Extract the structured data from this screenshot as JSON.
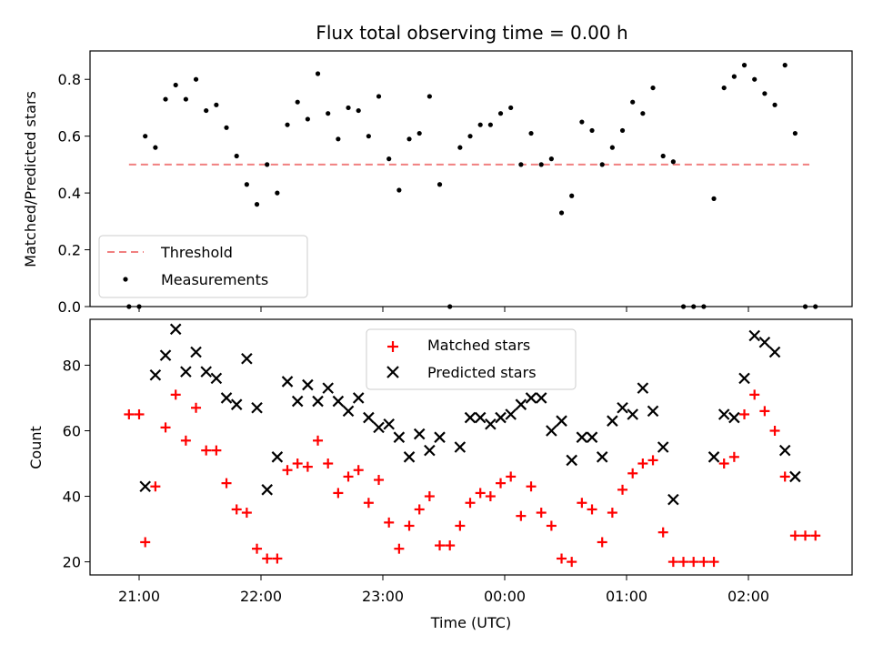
{
  "figure_title": "Flux total observing time = 0.00 h",
  "chart_data": [
    {
      "type": "scatter",
      "ylabel": "Matched/Predicted stars",
      "xlabel": "",
      "ylim": [
        0,
        0.9
      ],
      "yticks": [
        "0.0",
        "0.2",
        "0.4",
        "0.6",
        "0.8"
      ],
      "legend_position": "lower-left",
      "threshold": {
        "name": "Threshold",
        "y": 0.5,
        "x_start": "20:55",
        "x_end": "02:30",
        "color": "#f08080"
      },
      "series": [
        {
          "name": "Measurements",
          "color": "#000000",
          "x": [
            "20:55",
            "21:00",
            "21:03",
            "21:08",
            "21:13",
            "21:18",
            "21:23",
            "21:28",
            "21:33",
            "21:38",
            "21:43",
            "21:48",
            "21:53",
            "21:58",
            "22:03",
            "22:08",
            "22:13",
            "22:18",
            "22:23",
            "22:28",
            "22:33",
            "22:38",
            "22:43",
            "22:48",
            "22:53",
            "22:58",
            "23:03",
            "23:08",
            "23:13",
            "23:18",
            "23:23",
            "23:28",
            "23:33",
            "23:38",
            "23:43",
            "23:48",
            "23:53",
            "23:58",
            "00:03",
            "00:08",
            "00:13",
            "00:18",
            "00:23",
            "00:28",
            "00:33",
            "00:38",
            "00:43",
            "00:48",
            "00:53",
            "00:58",
            "01:03",
            "01:08",
            "01:13",
            "01:18",
            "01:23",
            "01:28",
            "01:33",
            "01:38",
            "01:43",
            "01:48",
            "01:53",
            "01:58",
            "02:03",
            "02:08",
            "02:13",
            "02:18",
            "02:23",
            "02:28",
            "02:33"
          ],
          "y": [
            0.0,
            0.0,
            0.6,
            0.56,
            0.73,
            0.78,
            0.73,
            0.8,
            0.69,
            0.71,
            0.63,
            0.53,
            0.43,
            0.36,
            0.5,
            0.4,
            0.64,
            0.72,
            0.66,
            0.82,
            0.68,
            0.59,
            0.7,
            0.69,
            0.6,
            0.74,
            0.52,
            0.41,
            0.59,
            0.61,
            0.74,
            0.43,
            0.0,
            0.56,
            0.6,
            0.64,
            0.64,
            0.68,
            0.7,
            0.5,
            0.61,
            0.5,
            0.52,
            0.33,
            0.39,
            0.65,
            0.62,
            0.5,
            0.56,
            0.62,
            0.72,
            0.68,
            0.77,
            0.53,
            0.51,
            0.0,
            0.0,
            0.0,
            0.38,
            0.77,
            0.81,
            0.85,
            0.8,
            0.75,
            0.71,
            0.85,
            0.61,
            0.0,
            0.0
          ]
        }
      ]
    },
    {
      "type": "scatter",
      "ylabel": "Count",
      "xlabel": "Time (UTC)",
      "ylim": [
        16,
        94
      ],
      "yticks": [
        "20",
        "40",
        "60",
        "80"
      ],
      "xticks": [
        "21:00",
        "22:00",
        "23:00",
        "00:00",
        "01:00",
        "02:00"
      ],
      "legend_position": "top-center",
      "series": [
        {
          "name": "Matched stars",
          "color": "#ff0000",
          "marker": "plus",
          "x": [
            "20:55",
            "21:00",
            "21:03",
            "21:08",
            "21:13",
            "21:18",
            "21:23",
            "21:28",
            "21:33",
            "21:38",
            "21:43",
            "21:48",
            "21:53",
            "21:58",
            "22:03",
            "22:08",
            "22:13",
            "22:18",
            "22:23",
            "22:28",
            "22:33",
            "22:38",
            "22:43",
            "22:48",
            "22:53",
            "22:58",
            "23:03",
            "23:08",
            "23:13",
            "23:18",
            "23:23",
            "23:28",
            "23:33",
            "23:38",
            "23:43",
            "23:48",
            "23:53",
            "23:58",
            "00:03",
            "00:08",
            "00:13",
            "00:18",
            "00:23",
            "00:28",
            "00:33",
            "00:38",
            "00:43",
            "00:48",
            "00:53",
            "00:58",
            "01:03",
            "01:08",
            "01:13",
            "01:18",
            "01:23",
            "01:28",
            "01:33",
            "01:38",
            "01:43",
            "01:48",
            "01:53",
            "01:58",
            "02:03",
            "02:08",
            "02:13",
            "02:18",
            "02:23",
            "02:28",
            "02:33"
          ],
          "y": [
            65,
            65,
            26,
            43,
            61,
            71,
            57,
            67,
            54,
            54,
            44,
            36,
            35,
            24,
            21,
            21,
            48,
            50,
            49,
            57,
            50,
            41,
            46,
            48,
            38,
            45,
            32,
            24,
            31,
            36,
            40,
            25,
            25,
            31,
            38,
            41,
            40,
            44,
            46,
            34,
            43,
            35,
            31,
            21,
            20,
            38,
            36,
            26,
            35,
            42,
            47,
            50,
            51,
            29,
            20,
            20,
            20,
            20,
            20,
            50,
            52,
            65,
            71,
            66,
            60,
            46,
            28,
            28,
            28
          ]
        },
        {
          "name": "Predicted stars",
          "color": "#000000",
          "marker": "x",
          "x": [
            "21:03",
            "21:08",
            "21:13",
            "21:18",
            "21:23",
            "21:28",
            "21:33",
            "21:38",
            "21:43",
            "21:48",
            "21:53",
            "21:58",
            "22:03",
            "22:08",
            "22:13",
            "22:18",
            "22:23",
            "22:28",
            "22:33",
            "22:38",
            "22:43",
            "22:48",
            "22:53",
            "22:58",
            "23:03",
            "23:08",
            "23:13",
            "23:18",
            "23:23",
            "23:28",
            "23:38",
            "23:43",
            "23:48",
            "23:53",
            "23:58",
            "00:03",
            "00:08",
            "00:13",
            "00:18",
            "00:23",
            "00:28",
            "00:33",
            "00:38",
            "00:43",
            "00:48",
            "00:53",
            "00:58",
            "01:03",
            "01:08",
            "01:13",
            "01:18",
            "01:23",
            "01:43",
            "01:48",
            "01:53",
            "01:58",
            "02:03",
            "02:08",
            "02:13",
            "02:18",
            "02:23"
          ],
          "y": [
            43,
            77,
            83,
            91,
            78,
            84,
            78,
            76,
            70,
            68,
            82,
            67,
            42,
            52,
            75,
            69,
            74,
            69,
            73,
            69,
            66,
            70,
            64,
            61,
            62,
            58,
            52,
            59,
            54,
            58,
            55,
            64,
            64,
            62,
            64,
            65,
            68,
            70,
            70,
            60,
            63,
            51,
            58,
            58,
            52,
            63,
            67,
            65,
            73,
            66,
            55,
            39,
            52,
            65,
            64,
            76,
            89,
            87,
            84,
            54,
            46
          ]
        }
      ]
    }
  ]
}
